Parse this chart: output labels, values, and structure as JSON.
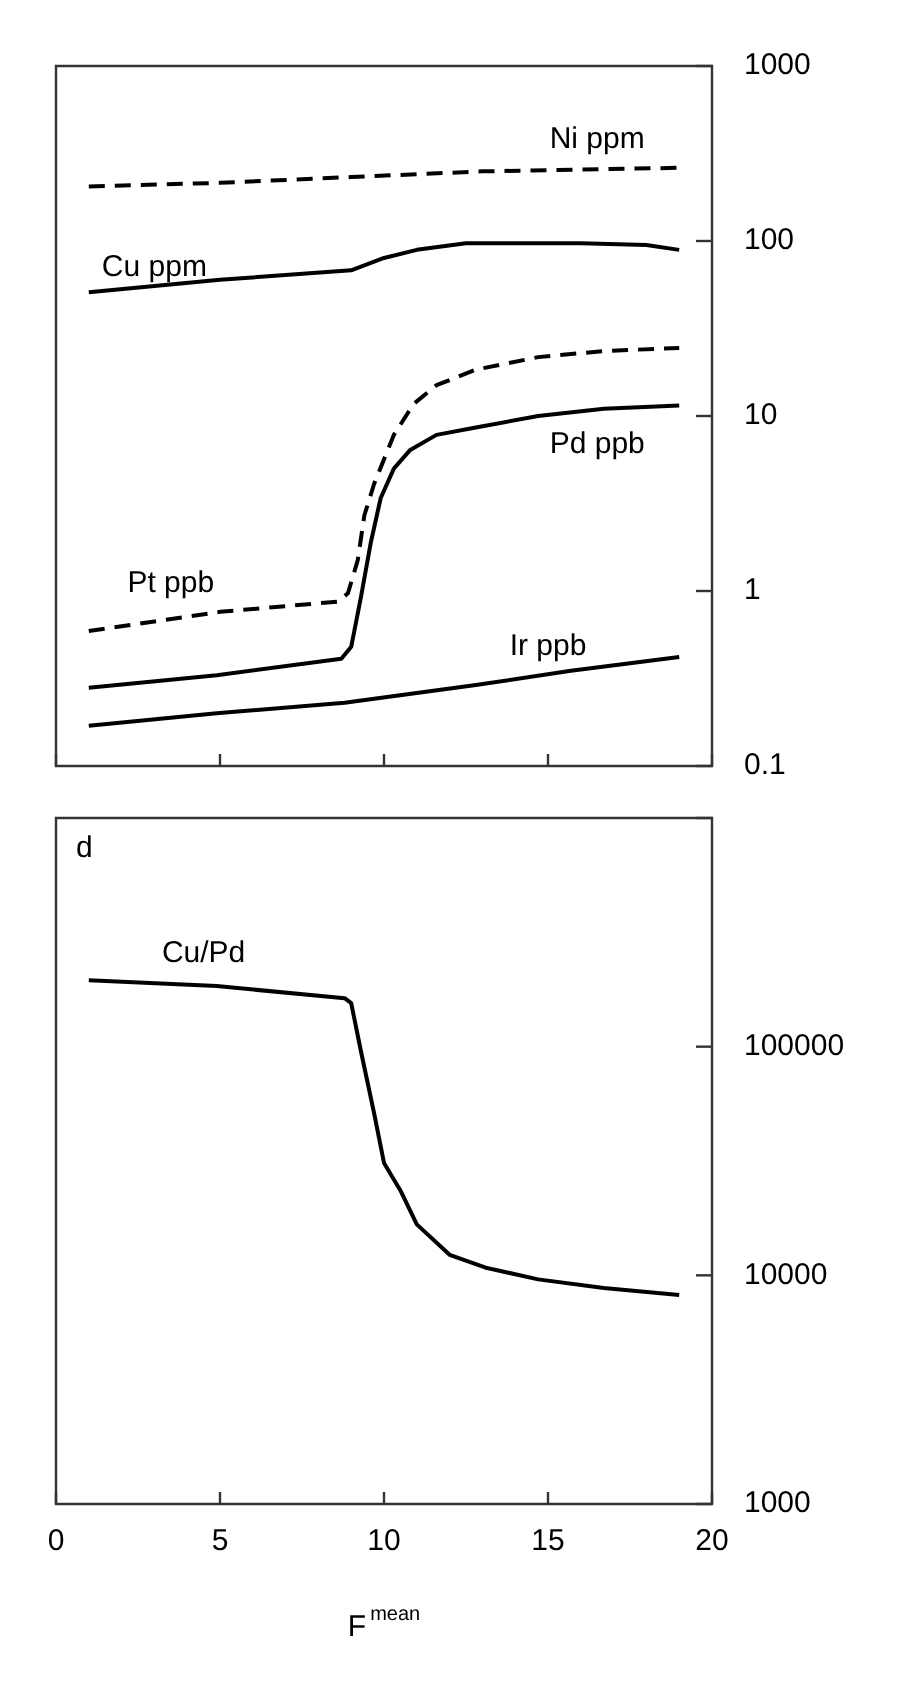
{
  "chart_data": [
    {
      "type": "line",
      "xlim": [
        0,
        20
      ],
      "xticks": [
        0,
        5,
        10,
        15,
        20
      ],
      "ylim": [
        0.1,
        1000
      ],
      "yticks": [
        0.1,
        1,
        10,
        100,
        1000
      ],
      "log": "y",
      "tick_labels": "y",
      "marker": "none",
      "grid": false,
      "legend": false,
      "series": [
        {
          "name": "Ni ppm",
          "color": "#000000",
          "line_style": "dashed",
          "x": [
            1,
            5,
            9,
            13,
            19
          ],
          "values": [
            205,
            215,
            232,
            250,
            262
          ]
        },
        {
          "name": "Cu ppm",
          "color": "#000000",
          "line_style": "solid",
          "x": [
            1,
            5,
            9,
            10,
            11,
            12.5,
            16,
            18,
            19
          ],
          "values": [
            51,
            60,
            68,
            80,
            89,
            97,
            97,
            95,
            89
          ]
        },
        {
          "name": "Pt ppb",
          "color": "#000000",
          "line_style": "dashed",
          "x": [
            1,
            5,
            8.6,
            8.9,
            9.2,
            9.4,
            9.7,
            10.3,
            10.9,
            11.6,
            12.8,
            14.7,
            16.7,
            19
          ],
          "values": [
            0.59,
            0.76,
            0.87,
            0.97,
            1.5,
            2.7,
            4.1,
            7.8,
            11.7,
            15,
            18.4,
            21.7,
            23.5,
            24.5
          ]
        },
        {
          "name": "Pd ppb",
          "color": "#000000",
          "line_style": "solid",
          "x": [
            1,
            4.9,
            8.7,
            9,
            9.3,
            9.6,
            9.9,
            10.3,
            10.8,
            11.6,
            12.8,
            14.7,
            16.7,
            19
          ],
          "values": [
            0.28,
            0.33,
            0.41,
            0.48,
            0.93,
            1.9,
            3.4,
            5,
            6.4,
            7.8,
            8.6,
            10,
            11,
            11.5
          ]
        },
        {
          "name": "Ir ppb",
          "color": "#000000",
          "line_style": "solid",
          "x": [
            1,
            4.9,
            8.8,
            12.8,
            15.7,
            19
          ],
          "values": [
            0.17,
            0.2,
            0.23,
            0.29,
            0.35,
            0.42
          ]
        }
      ]
    },
    {
      "type": "line",
      "xlabel": "F$^{mean}$",
      "annotations": [
        "d"
      ],
      "xlim": [
        0,
        20
      ],
      "xticks": [
        0,
        5,
        10,
        15,
        20
      ],
      "ylim": [
        1000,
        1000000
      ],
      "yticks": [
        1000,
        10000,
        100000,
        {
          "value": 1000000,
          "label": null
        }
      ],
      "log": "y",
      "marker": "none",
      "grid": false,
      "legend": false,
      "series": [
        {
          "name": "Cu/Pd",
          "color": "#000000",
          "line_style": "solid",
          "x": [
            1,
            4.9,
            8.8,
            9,
            9.3,
            9.7,
            10,
            10.5,
            11,
            12,
            13.1,
            14.7,
            16.7,
            19
          ],
          "values": [
            195000,
            184000,
            163000,
            155000,
            95000,
            51000,
            31000,
            23500,
            16700,
            12300,
            10800,
            9600,
            8800,
            8200
          ]
        }
      ]
    }
  ]
}
